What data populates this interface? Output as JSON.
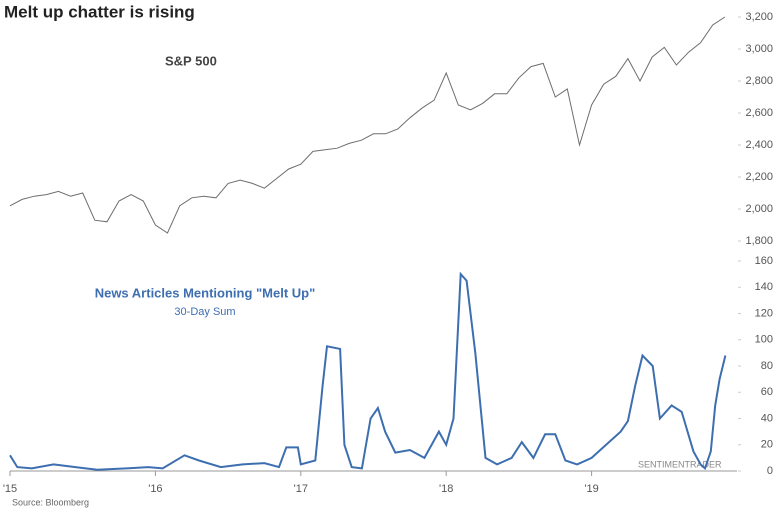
{
  "title": "Melt up chatter is rising",
  "source": "Source: Bloomberg",
  "watermark": "SENTIMENTRADER",
  "chart_data": [
    {
      "type": "line",
      "title": "S&P 500",
      "x": [
        2015.0,
        2015.083,
        2015.167,
        2015.25,
        2015.333,
        2015.417,
        2015.5,
        2015.583,
        2015.667,
        2015.75,
        2015.833,
        2015.917,
        2016.0,
        2016.083,
        2016.167,
        2016.25,
        2016.333,
        2016.417,
        2016.5,
        2016.583,
        2016.667,
        2016.75,
        2016.833,
        2016.917,
        2017.0,
        2017.083,
        2017.167,
        2017.25,
        2017.333,
        2017.417,
        2017.5,
        2017.583,
        2017.667,
        2017.75,
        2017.833,
        2017.917,
        2018.0,
        2018.083,
        2018.167,
        2018.25,
        2018.333,
        2018.417,
        2018.5,
        2018.583,
        2018.667,
        2018.75,
        2018.833,
        2018.917,
        2019.0,
        2019.083,
        2019.167,
        2019.25,
        2019.333,
        2019.417,
        2019.5,
        2019.583,
        2019.667,
        2019.75,
        2019.833,
        2019.917
      ],
      "series": [
        {
          "name": "S&P 500",
          "color": "#6e6e6e",
          "values": [
            2020,
            2060,
            2080,
            2090,
            2110,
            2080,
            2100,
            1930,
            1920,
            2050,
            2090,
            2050,
            1900,
            1850,
            2020,
            2070,
            2080,
            2070,
            2160,
            2180,
            2160,
            2130,
            2190,
            2250,
            2280,
            2360,
            2370,
            2380,
            2410,
            2430,
            2470,
            2470,
            2500,
            2570,
            2630,
            2680,
            2850,
            2650,
            2620,
            2660,
            2720,
            2720,
            2820,
            2890,
            2910,
            2700,
            2750,
            2400,
            2650,
            2780,
            2830,
            2940,
            2800,
            2950,
            3010,
            2900,
            2980,
            3040,
            3150,
            3200
          ]
        }
      ],
      "xlim": [
        2015,
        2020
      ],
      "ylim": [
        1800,
        3200
      ],
      "yticks": [
        {
          "value": 1800,
          "label": "1,800"
        },
        {
          "value": 2000,
          "label": "2,000"
        },
        {
          "value": 2200,
          "label": "2,200"
        },
        {
          "value": 2400,
          "label": "2,400"
        },
        {
          "value": 2600,
          "label": "2,600"
        },
        {
          "value": 2800,
          "label": "2,800"
        },
        {
          "value": 3000,
          "label": "3,000"
        },
        {
          "value": 3200,
          "label": "3,200"
        }
      ]
    },
    {
      "type": "line",
      "title": "News Articles Mentioning \"Melt Up\"",
      "subtitle": "30-Day Sum",
      "x": [
        2015.0,
        2015.05,
        2015.15,
        2015.3,
        2015.45,
        2015.6,
        2015.8,
        2015.95,
        2016.05,
        2016.2,
        2016.3,
        2016.45,
        2016.6,
        2016.75,
        2016.85,
        2016.9,
        2016.98,
        2017.0,
        2017.1,
        2017.15,
        2017.18,
        2017.27,
        2017.3,
        2017.35,
        2017.42,
        2017.48,
        2017.53,
        2017.58,
        2017.65,
        2017.75,
        2017.85,
        2017.95,
        2018.0,
        2018.05,
        2018.1,
        2018.14,
        2018.2,
        2018.27,
        2018.35,
        2018.45,
        2018.52,
        2018.6,
        2018.68,
        2018.75,
        2018.82,
        2018.9,
        2019.0,
        2019.1,
        2019.2,
        2019.25,
        2019.3,
        2019.35,
        2019.42,
        2019.47,
        2019.55,
        2019.62,
        2019.7,
        2019.75,
        2019.78,
        2019.82,
        2019.85,
        2019.88,
        2019.92
      ],
      "series": [
        {
          "name": "News Articles Mentioning \"Melt Up\"",
          "color": "#3d6fb0",
          "values": [
            12,
            3,
            2,
            5,
            3,
            1,
            2,
            3,
            2,
            12,
            8,
            3,
            5,
            6,
            3,
            18,
            18,
            5,
            8,
            65,
            95,
            93,
            20,
            3,
            2,
            40,
            48,
            30,
            14,
            16,
            10,
            30,
            20,
            40,
            150,
            145,
            90,
            10,
            5,
            10,
            22,
            10,
            28,
            28,
            8,
            5,
            10,
            20,
            30,
            38,
            65,
            88,
            80,
            40,
            50,
            45,
            15,
            5,
            2,
            15,
            50,
            70,
            88
          ]
        }
      ],
      "xlim": [
        2015,
        2020
      ],
      "ylim": [
        0,
        160
      ],
      "yticks": [
        0,
        20,
        40,
        60,
        80,
        100,
        120,
        140,
        160
      ],
      "xticks": [
        {
          "value": 2015,
          "label": "'15"
        },
        {
          "value": 2016,
          "label": "'16"
        },
        {
          "value": 2017,
          "label": "'17"
        },
        {
          "value": 2018,
          "label": "'18"
        },
        {
          "value": 2019,
          "label": "'19"
        }
      ]
    }
  ]
}
